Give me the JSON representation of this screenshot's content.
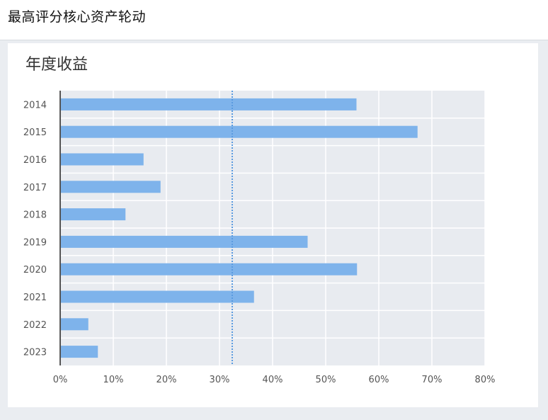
{
  "header": {
    "title": "最高评分核心资产轮动"
  },
  "card": {
    "title": "年度收益"
  },
  "chart_data": {
    "type": "bar",
    "orientation": "horizontal",
    "title": "年度收益",
    "xlabel": "",
    "ylabel": "",
    "categories": [
      "2014",
      "2015",
      "2016",
      "2017",
      "2018",
      "2019",
      "2020",
      "2021",
      "2022",
      "2023"
    ],
    "values": [
      55.8,
      67.3,
      15.7,
      18.9,
      12.3,
      46.6,
      55.9,
      36.5,
      5.3,
      7.1
    ],
    "xlim": [
      0,
      80
    ],
    "xticks": [
      "0%",
      "10%",
      "20%",
      "30%",
      "40%",
      "50%",
      "60%",
      "70%",
      "80%"
    ],
    "reference_line": 32.4,
    "grid": true,
    "legend": "none",
    "colors": {
      "bar": "#7eb3eb",
      "plot_background": "#e8ebf0",
      "grid": "#ffffff",
      "reference_line": "#5b9be0",
      "axis": "#555555"
    }
  }
}
